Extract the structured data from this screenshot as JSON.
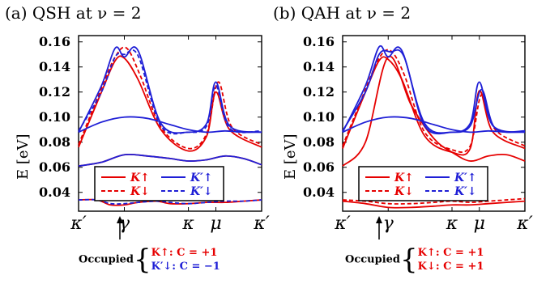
{
  "colors": {
    "red": "#e60000",
    "blue": "#1f1fd6"
  },
  "chart_data": [
    {
      "type": "line",
      "title": "(a) QSH at ν = 2",
      "xlabel": "",
      "ylabel": "E [eV]",
      "ylim": [
        0.025,
        0.165
      ],
      "yticks": [
        "0.04",
        "0.06",
        "0.08",
        "0.10",
        "0.12",
        "0.14",
        "0.16"
      ],
      "xticks": [
        "κ′",
        "γ",
        "κ",
        "μ",
        "κ′"
      ],
      "xtick_positions": [
        0,
        1,
        2.4,
        3,
        4
      ],
      "legend_items": [
        "K↑",
        "K↓",
        "K′↑",
        "K′↓"
      ],
      "annotation_label": "Occupied",
      "annotation_lines": [
        "K↑: C = +1",
        "K′↓: C = −1"
      ],
      "series": [
        {
          "color": "red",
          "dash": false,
          "x": [
            0,
            0.5,
            0.8,
            1,
            1.3,
            1.8,
            2.4,
            2.8,
            3,
            3.3,
            4
          ],
          "y": [
            0.076,
            0.12,
            0.145,
            0.147,
            0.13,
            0.09,
            0.073,
            0.085,
            0.12,
            0.09,
            0.076
          ]
        },
        {
          "color": "red",
          "dash": true,
          "x": [
            0,
            0.5,
            0.8,
            1.05,
            1.35,
            1.8,
            2.4,
            2.8,
            3.05,
            3.35,
            4
          ],
          "y": [
            0.078,
            0.123,
            0.148,
            0.155,
            0.133,
            0.092,
            0.075,
            0.087,
            0.128,
            0.092,
            0.078
          ]
        },
        {
          "color": "red",
          "dash": false,
          "x": [
            0,
            0.5,
            1,
            1.5,
            2,
            2.4,
            2.8,
            3.2,
            3.6,
            4
          ],
          "y": [
            0.061,
            0.064,
            0.07,
            0.069,
            0.067,
            0.065,
            0.066,
            0.069,
            0.067,
            0.062
          ]
        },
        {
          "color": "red",
          "dash": false,
          "x": [
            0,
            0.4,
            0.7,
            1,
            1.3,
            1.7,
            2,
            2.4,
            2.8,
            3.2,
            3.6,
            4
          ],
          "y": [
            0.034,
            0.034,
            0.03,
            0.03,
            0.032,
            0.033,
            0.031,
            0.031,
            0.032,
            0.032,
            0.033,
            0.034
          ]
        },
        {
          "color": "blue",
          "dash": false,
          "x": [
            0,
            0.5,
            0.8,
            1,
            1.3,
            1.8,
            2.4,
            2.8,
            3,
            3.3,
            4
          ],
          "y": [
            0.088,
            0.125,
            0.155,
            0.148,
            0.153,
            0.095,
            0.088,
            0.095,
            0.128,
            0.093,
            0.088
          ]
        },
        {
          "color": "blue",
          "dash": true,
          "x": [
            0,
            0.5,
            0.8,
            1,
            1.3,
            1.8,
            2.4,
            2.8,
            3,
            3.3,
            4
          ],
          "y": [
            0.089,
            0.12,
            0.148,
            0.15,
            0.149,
            0.093,
            0.088,
            0.093,
            0.125,
            0.091,
            0.089
          ]
        },
        {
          "color": "blue",
          "dash": false,
          "x": [
            0,
            0.5,
            1,
            1.5,
            2,
            2.4,
            2.8,
            3.2,
            3.6,
            4
          ],
          "y": [
            0.088,
            0.096,
            0.1,
            0.099,
            0.094,
            0.09,
            0.088,
            0.089,
            0.088,
            0.088
          ]
        },
        {
          "color": "blue",
          "dash": false,
          "x": [
            0,
            0.5,
            1,
            1.5,
            2,
            2.4,
            2.8,
            3.2,
            3.6,
            4
          ],
          "y": [
            0.061,
            0.064,
            0.07,
            0.069,
            0.067,
            0.065,
            0.066,
            0.069,
            0.067,
            0.062
          ]
        },
        {
          "color": "blue",
          "dash": true,
          "x": [
            0,
            0.4,
            0.7,
            1,
            1.3,
            1.7,
            2,
            2.4,
            2.8,
            3.2,
            3.6,
            4
          ],
          "y": [
            0.034,
            0.034,
            0.031,
            0.031,
            0.032,
            0.033,
            0.032,
            0.031,
            0.032,
            0.033,
            0.033,
            0.034
          ]
        }
      ]
    },
    {
      "type": "line",
      "title": "(b) QAH at ν = 2",
      "xlabel": "",
      "ylabel": "E [eV]",
      "ylim": [
        0.025,
        0.165
      ],
      "yticks": [
        "0.04",
        "0.06",
        "0.08",
        "0.10",
        "0.12",
        "0.14",
        "0.16"
      ],
      "xticks": [
        "κ′",
        "γ",
        "κ",
        "μ",
        "κ′"
      ],
      "xtick_positions": [
        0,
        1,
        2.4,
        3,
        4
      ],
      "legend_items": [
        "K↑",
        "K↓",
        "K′↑",
        "K′↓"
      ],
      "annotation_label": "Occupied",
      "annotation_lines": [
        "K↑: C = +1",
        "K↓: C = +1"
      ],
      "series": [
        {
          "color": "red",
          "dash": false,
          "x": [
            0,
            0.5,
            0.8,
            1,
            1.3,
            1.8,
            2.4,
            2.8,
            3,
            3.3,
            4
          ],
          "y": [
            0.075,
            0.12,
            0.145,
            0.146,
            0.13,
            0.085,
            0.072,
            0.075,
            0.121,
            0.088,
            0.075
          ]
        },
        {
          "color": "red",
          "dash": true,
          "x": [
            0,
            0.5,
            0.8,
            1.05,
            1.35,
            1.8,
            2.4,
            2.8,
            3.05,
            3.35,
            4
          ],
          "y": [
            0.077,
            0.122,
            0.147,
            0.153,
            0.134,
            0.088,
            0.074,
            0.077,
            0.118,
            0.09,
            0.077
          ]
        },
        {
          "color": "red",
          "dash": false,
          "x": [
            0,
            0.5,
            1,
            1.5,
            2,
            2.4,
            2.8,
            3.2,
            3.6,
            4
          ],
          "y": [
            0.061,
            0.08,
            0.148,
            0.11,
            0.083,
            0.072,
            0.065,
            0.069,
            0.07,
            0.065
          ]
        },
        {
          "color": "red",
          "dash": false,
          "x": [
            0,
            0.5,
            1,
            1.5,
            2,
            2.4,
            2.8,
            3.2,
            3.6,
            4
          ],
          "y": [
            0.033,
            0.031,
            0.028,
            0.028,
            0.029,
            0.03,
            0.03,
            0.031,
            0.032,
            0.033
          ]
        },
        {
          "color": "red",
          "dash": true,
          "x": [
            0,
            0.5,
            1,
            1.5,
            2,
            2.4,
            2.8,
            3.2,
            3.6,
            4
          ],
          "y": [
            0.034,
            0.033,
            0.031,
            0.031,
            0.032,
            0.033,
            0.032,
            0.033,
            0.034,
            0.035
          ]
        },
        {
          "color": "blue",
          "dash": false,
          "x": [
            0,
            0.5,
            0.8,
            1,
            1.3,
            1.8,
            2.4,
            2.8,
            3,
            3.3,
            4
          ],
          "y": [
            0.088,
            0.125,
            0.156,
            0.148,
            0.153,
            0.095,
            0.088,
            0.095,
            0.128,
            0.093,
            0.088
          ]
        },
        {
          "color": "blue",
          "dash": false,
          "x": [
            0,
            0.5,
            0.8,
            1.05,
            1.35,
            1.8,
            2.4,
            2.8,
            3.05,
            3.35,
            4
          ],
          "y": [
            0.089,
            0.12,
            0.15,
            0.152,
            0.148,
            0.093,
            0.088,
            0.093,
            0.122,
            0.091,
            0.089
          ]
        },
        {
          "color": "blue",
          "dash": false,
          "x": [
            0,
            0.5,
            1,
            1.5,
            2,
            2.4,
            2.8,
            3.2,
            3.6,
            4
          ],
          "y": [
            0.088,
            0.096,
            0.1,
            0.099,
            0.094,
            0.09,
            0.088,
            0.089,
            0.088,
            0.088
          ]
        }
      ]
    }
  ]
}
